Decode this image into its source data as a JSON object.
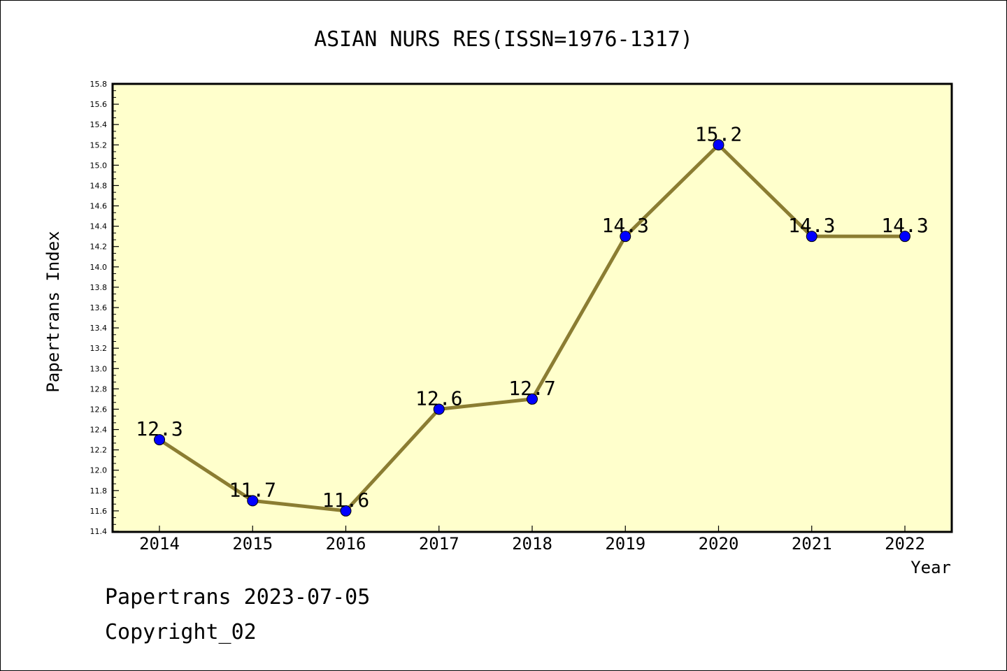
{
  "chart_data": {
    "type": "line",
    "title": "ASIAN NURS RES(ISSN=1976-1317)",
    "xlabel": "Year",
    "ylabel": "Papertrans Index",
    "categories": [
      "2014",
      "2015",
      "2016",
      "2017",
      "2018",
      "2019",
      "2020",
      "2021",
      "2022"
    ],
    "series": [
      {
        "values": [
          12.3,
          11.7,
          11.6,
          12.6,
          12.7,
          14.3,
          15.2,
          14.3,
          14.3
        ],
        "labels": [
          "12.3",
          "11.7",
          "11.6",
          "12.6",
          "12.7",
          "14.3",
          "15.2",
          "14.3",
          "14.3"
        ]
      }
    ],
    "ylim": [
      11.4,
      15.8
    ],
    "yticks": [
      "11.4",
      "11.6",
      "11.8",
      "12.0",
      "12.2",
      "12.4",
      "12.6",
      "12.8",
      "13.0",
      "13.2",
      "13.4",
      "13.6",
      "13.8",
      "14.0",
      "14.2",
      "14.4",
      "14.6",
      "14.8",
      "15.0",
      "15.2",
      "15.4",
      "15.6",
      "15.8"
    ],
    "grid": false,
    "colors": {
      "plot_background": "#ffffcc",
      "line": "#8b7d32",
      "marker": "#0000ff"
    }
  },
  "footer": {
    "line1": "Papertrans 2023-07-05",
    "line2": "Copyright_02"
  }
}
